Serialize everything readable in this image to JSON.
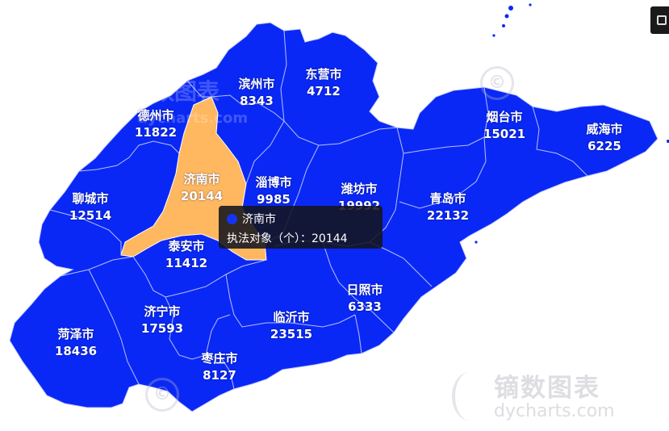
{
  "chart_data": {
    "type": "map",
    "region": "山东省",
    "metric": "执法对象（个）",
    "cities": [
      {
        "name": "滨州市",
        "value": 8343
      },
      {
        "name": "东营市",
        "value": 4712
      },
      {
        "name": "德州市",
        "value": 11822
      },
      {
        "name": "烟台市",
        "value": 15021
      },
      {
        "name": "威海市",
        "value": 6225
      },
      {
        "name": "济南市",
        "value": 20144
      },
      {
        "name": "淄博市",
        "value": 9985
      },
      {
        "name": "潍坊市",
        "value": 19992
      },
      {
        "name": "聊城市",
        "value": 12514
      },
      {
        "name": "青岛市",
        "value": 22132
      },
      {
        "name": "泰安市",
        "value": 11412
      },
      {
        "name": "日照市",
        "value": 6333
      },
      {
        "name": "济宁市",
        "value": 17593
      },
      {
        "name": "临沂市",
        "value": 23515
      },
      {
        "name": "菏泽市",
        "value": 18436
      },
      {
        "name": "枣庄市",
        "value": 8127
      }
    ],
    "highlighted": "济南市"
  },
  "colors": {
    "region_fill": "#0a28f5",
    "highlight_fill": "#ffb860",
    "border": "#c9d0ff",
    "tooltip_dot": "#1434f0"
  },
  "tooltip": {
    "city": "济南市",
    "label": "执法对象（个）：",
    "value": "20144"
  },
  "watermark": {
    "brand": "镝数图表",
    "url": "dycharts.com"
  },
  "toolbar": {
    "screenshot_icon": "camera-icon"
  }
}
